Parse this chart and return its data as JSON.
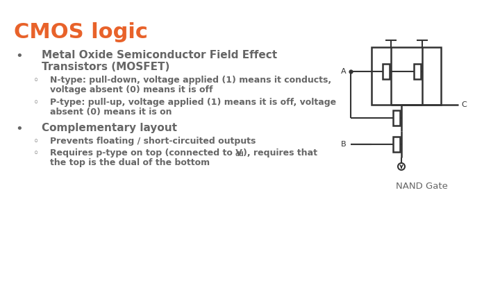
{
  "title": "CMOS logic",
  "title_color": "#E8622A",
  "title_fontsize": 22,
  "bg_color": "#FFFFFF",
  "text_color": "#666666",
  "diagram_color": "#333333",
  "nand_label": "NAND Gate",
  "bullet1_line1": "Metal Oxide Semiconductor Field Effect",
  "bullet1_line2": "Transistors (MOSFET)",
  "sub1_line1": "N-type: pull-down, voltage applied (1) means it conducts,",
  "sub1_line2": "voltage absent (0) means it is off",
  "sub2_line1": "P-type: pull-up, voltage applied (1) means it is off, voltage",
  "sub2_line2": "absent (0) means it is on",
  "bullet2_line1": "Complementary layout",
  "sub3_line1": "Prevents floating / short-circuited outputs",
  "sub4_line1": "Requires p-type on top (connected to V",
  "sub4_vdd": "dd",
  "sub4_line1b": "), requires that",
  "sub4_line2": "the top is the dual of the bottom"
}
